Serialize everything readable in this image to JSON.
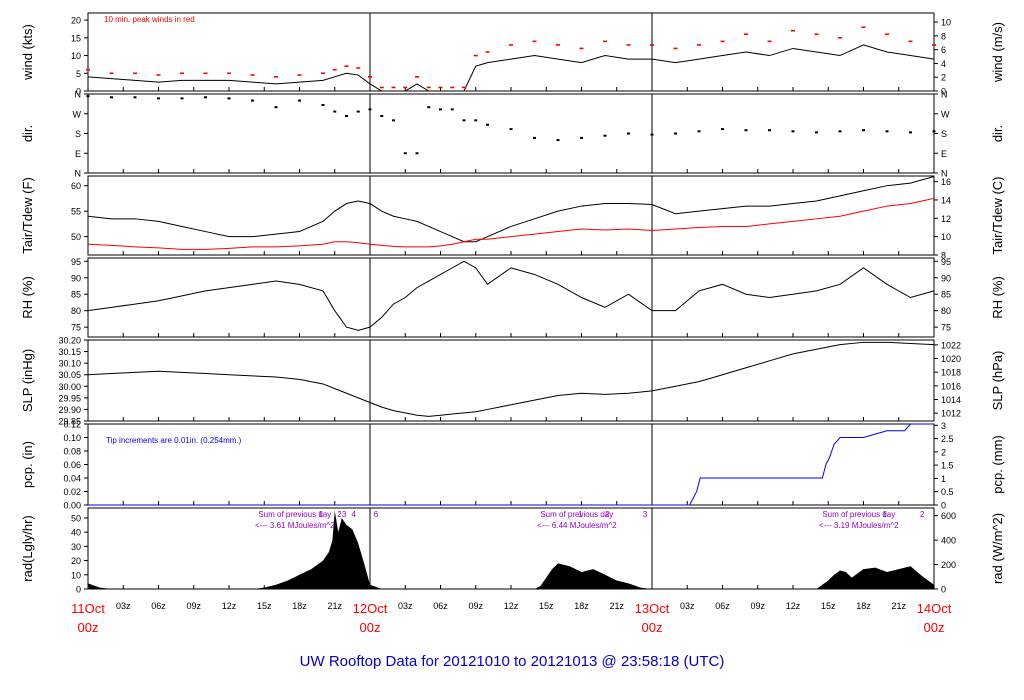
{
  "title": "UW Rooftop Data for 20121010  to  20121013 @ 23:58:18  (UTC)",
  "colors": {
    "axis": "#000000",
    "red": "#ff0000",
    "blue": "#0000ff",
    "purple": "#9900cc",
    "title": "#0000cc",
    "fill": "#000000"
  },
  "time_axis": {
    "range_hours": [
      0,
      72
    ],
    "tick_labels": [
      "03z",
      "06z",
      "09z",
      "12z",
      "15z",
      "18z",
      "21z",
      "03z",
      "06z",
      "09z",
      "12z",
      "15z",
      "18z",
      "21z",
      "03z",
      "06z",
      "09z",
      "12z",
      "15z",
      "18z",
      "21z"
    ],
    "tick_hours": [
      3,
      6,
      9,
      12,
      15,
      18,
      21,
      27,
      30,
      33,
      36,
      39,
      42,
      45,
      51,
      54,
      57,
      60,
      63,
      66,
      69
    ],
    "day_labels": [
      {
        "hour": 0,
        "line1": "11Oct",
        "line2": "00z"
      },
      {
        "hour": 24,
        "line1": "12Oct",
        "line2": "00z"
      },
      {
        "hour": 48,
        "line1": "13Oct",
        "line2": "00z"
      },
      {
        "hour": 72,
        "line1": "14Oct",
        "line2": "00z"
      }
    ]
  },
  "chart_data": [
    {
      "id": "wind",
      "type": "line",
      "left_label": "wind (kts)",
      "right_label": "wind (m/s)",
      "annotation": "10 min. peak winds in red",
      "ylim": [
        0,
        22
      ],
      "left_ticks": [
        "0",
        "5",
        "10",
        "15",
        "20"
      ],
      "left_tick_values": [
        0,
        5,
        10,
        15,
        20
      ],
      "right_ticks": [
        "0",
        "2",
        "4",
        "6",
        "8",
        "10"
      ],
      "right_tick_values": [
        0,
        3.89,
        7.78,
        11.66,
        15.55,
        19.44
      ],
      "hours": [
        0,
        2,
        4,
        6,
        8,
        10,
        12,
        14,
        16,
        18,
        20,
        21,
        22,
        23,
        24,
        25,
        26,
        27,
        28,
        29,
        30,
        31,
        32,
        33,
        34,
        36,
        38,
        40,
        42,
        44,
        46,
        48,
        50,
        52,
        54,
        56,
        58,
        60,
        62,
        64,
        66,
        68,
        70,
        72
      ],
      "series": [
        {
          "name": "wind",
          "values": [
            4,
            3.5,
            3,
            2.5,
            3,
            3,
            3,
            2.5,
            2,
            2.5,
            3,
            4,
            5,
            4.5,
            2,
            0,
            0,
            0,
            2,
            0,
            0,
            0,
            0,
            7,
            8,
            9,
            10,
            9,
            8,
            10,
            9,
            9,
            8,
            9,
            10,
            11,
            10,
            12,
            11,
            10,
            13,
            11,
            10,
            9
          ]
        },
        {
          "name": "peak",
          "color": "red",
          "values": [
            6,
            5,
            5,
            4.5,
            5,
            5,
            5,
            4.5,
            4,
            4.5,
            5,
            6,
            7,
            6.5,
            4,
            1,
            1,
            1,
            4,
            1,
            1,
            1,
            1,
            10,
            11,
            13,
            14,
            13,
            12,
            14,
            13,
            13,
            12,
            13,
            14,
            16,
            14,
            17,
            16,
            15,
            18,
            16,
            14,
            13
          ]
        }
      ]
    },
    {
      "id": "dir",
      "type": "scatter",
      "left_label": "dir.",
      "right_label": "dir.",
      "ylim": [
        0,
        360
      ],
      "left_ticks": [
        "N",
        "E",
        "S",
        "W",
        "N"
      ],
      "left_tick_values": [
        0,
        90,
        180,
        270,
        360
      ],
      "right_ticks": [
        "N",
        "E",
        "S",
        "W",
        "N"
      ],
      "right_tick_values": [
        0,
        90,
        180,
        270,
        360
      ],
      "hours": [
        0,
        2,
        4,
        6,
        8,
        10,
        12,
        14,
        16,
        18,
        20,
        21,
        22,
        23,
        24,
        25,
        26,
        27,
        28,
        29,
        30,
        31,
        32,
        33,
        34,
        36,
        38,
        40,
        42,
        44,
        46,
        48,
        50,
        52,
        54,
        56,
        58,
        60,
        62,
        64,
        66,
        68,
        70,
        72
      ],
      "series": [
        {
          "name": "direction",
          "values": [
            350,
            345,
            345,
            340,
            340,
            345,
            340,
            330,
            300,
            330,
            310,
            280,
            260,
            280,
            290,
            260,
            240,
            90,
            90,
            300,
            290,
            290,
            240,
            240,
            220,
            200,
            160,
            150,
            160,
            170,
            180,
            175,
            180,
            190,
            200,
            195,
            195,
            190,
            185,
            190,
            195,
            190,
            185,
            190
          ]
        }
      ]
    },
    {
      "id": "temp",
      "type": "line",
      "left_label": "Tair/Tdew (F)",
      "right_label": "Tair/Tdew (C)",
      "ylim": [
        46.4,
        61.9
      ],
      "left_ticks": [
        "50",
        "55",
        "60"
      ],
      "left_tick_values": [
        50,
        55,
        60
      ],
      "right_ticks": [
        "8",
        "10",
        "12",
        "14",
        "16"
      ],
      "right_tick_values": [
        46.4,
        50,
        53.6,
        57.2,
        60.8
      ],
      "hours": [
        0,
        2,
        4,
        6,
        8,
        10,
        12,
        14,
        16,
        18,
        20,
        21,
        22,
        23,
        24,
        25,
        26,
        27,
        28,
        29,
        30,
        31,
        32,
        33,
        34,
        36,
        38,
        40,
        42,
        44,
        46,
        48,
        50,
        52,
        54,
        56,
        58,
        60,
        62,
        64,
        66,
        68,
        70,
        72
      ],
      "series": [
        {
          "name": "Tair",
          "values": [
            54,
            53.5,
            53.5,
            53,
            52,
            51,
            50,
            50,
            50.5,
            51,
            53,
            55,
            56.5,
            57,
            56.5,
            55,
            54,
            53.5,
            53,
            52,
            51,
            50,
            49,
            49,
            50,
            52,
            53.5,
            55,
            56,
            56.5,
            56.5,
            56.3,
            54.5,
            55,
            55.5,
            56,
            56,
            56.5,
            57,
            58,
            59,
            60,
            60.5,
            61.8
          ]
        },
        {
          "name": "Tdew",
          "color": "red",
          "values": [
            48.5,
            48.3,
            48,
            47.8,
            47.5,
            47.5,
            47.7,
            48,
            48,
            48.2,
            48.5,
            49,
            49,
            48.8,
            48.5,
            48.3,
            48.1,
            48,
            48,
            48,
            48.2,
            48.5,
            49,
            49.5,
            49.5,
            50,
            50.5,
            51,
            51.5,
            51.3,
            51.5,
            51.2,
            51.5,
            51.8,
            52,
            52,
            52.5,
            53,
            53.5,
            54,
            55,
            56,
            56.5,
            57.5
          ]
        }
      ]
    },
    {
      "id": "rh",
      "type": "line",
      "left_label": "RH (%)",
      "right_label": "RH (%)",
      "ylim": [
        72,
        96
      ],
      "left_ticks": [
        "75",
        "80",
        "85",
        "90",
        "95"
      ],
      "left_tick_values": [
        75,
        80,
        85,
        90,
        95
      ],
      "right_ticks": [
        "75",
        "80",
        "85",
        "90",
        "95"
      ],
      "right_tick_values": [
        75,
        80,
        85,
        90,
        95
      ],
      "hours": [
        0,
        2,
        4,
        6,
        8,
        10,
        12,
        14,
        16,
        18,
        20,
        21,
        22,
        23,
        24,
        25,
        26,
        27,
        28,
        29,
        30,
        31,
        32,
        33,
        34,
        36,
        38,
        40,
        42,
        44,
        46,
        48,
        50,
        52,
        54,
        56,
        58,
        60,
        62,
        64,
        66,
        68,
        70,
        72
      ],
      "series": [
        {
          "name": "RH",
          "values": [
            80,
            81,
            82,
            83,
            84.5,
            86,
            87,
            88,
            89,
            88,
            86,
            80,
            75,
            74,
            75,
            78,
            82,
            84,
            87,
            89,
            91,
            93,
            95,
            93,
            88,
            93,
            91,
            88,
            84,
            81,
            85,
            80,
            80,
            86,
            88,
            85,
            84,
            85,
            86,
            88,
            93,
            88,
            84,
            86
          ]
        }
      ]
    },
    {
      "id": "slp",
      "type": "line",
      "left_label": "SLP (inHg)",
      "right_label": "SLP (hPa)",
      "ylim": [
        29.85,
        30.2
      ],
      "left_ticks": [
        "29.85",
        "29.90",
        "29.95",
        "30.00",
        "30.05",
        "30.10",
        "30.15",
        "30.20"
      ],
      "left_tick_values": [
        29.85,
        29.9,
        29.95,
        30,
        30.05,
        30.1,
        30.15,
        30.2
      ],
      "right_ticks": [
        "1012",
        "1014",
        "1016",
        "1018",
        "1020",
        "1022"
      ],
      "right_tick_values": [
        29.884,
        29.943,
        30.002,
        30.061,
        30.12,
        30.179
      ],
      "hours": [
        0,
        2,
        4,
        6,
        8,
        10,
        12,
        14,
        16,
        18,
        20,
        21,
        22,
        23,
        24,
        25,
        26,
        27,
        28,
        29,
        30,
        31,
        32,
        33,
        34,
        36,
        38,
        40,
        42,
        44,
        46,
        48,
        50,
        52,
        54,
        56,
        58,
        60,
        62,
        64,
        66,
        68,
        70,
        72
      ],
      "series": [
        {
          "name": "SLP",
          "values": [
            30.05,
            30.055,
            30.06,
            30.065,
            30.06,
            30.055,
            30.05,
            30.045,
            30.04,
            30.03,
            30.01,
            29.99,
            29.97,
            29.95,
            29.93,
            29.91,
            29.895,
            29.885,
            29.875,
            29.87,
            29.875,
            29.88,
            29.885,
            29.89,
            29.9,
            29.92,
            29.94,
            29.96,
            29.97,
            29.965,
            29.97,
            29.98,
            30.0,
            30.02,
            30.05,
            30.08,
            30.11,
            30.14,
            30.16,
            30.18,
            30.19,
            30.19,
            30.185,
            30.18
          ]
        }
      ]
    },
    {
      "id": "pcp",
      "type": "line",
      "left_label": "pcp. (in)",
      "right_label": "pcp. (mm)",
      "annotation": "Tip increments are 0.01in. (0.254mm.)",
      "ylim": [
        0,
        0.12
      ],
      "left_ticks": [
        "0.00",
        "0.02",
        "0.04",
        "0.06",
        "0.08",
        "0.10",
        "0.12"
      ],
      "left_tick_values": [
        0,
        0.02,
        0.04,
        0.06,
        0.08,
        0.1,
        0.12
      ],
      "right_ticks": [
        "0",
        "0.5",
        "1",
        "1.5",
        "2",
        "2.5",
        "3"
      ],
      "right_tick_values": [
        0,
        0.0197,
        0.0394,
        0.0591,
        0.0787,
        0.0984,
        0.1181
      ],
      "hours": [
        0,
        51.2,
        51.5,
        51.8,
        52.1,
        54,
        58,
        60,
        62.5,
        62.8,
        63.1,
        63.5,
        64,
        66,
        68,
        69.5,
        70,
        72
      ],
      "series": [
        {
          "name": "precip",
          "color": "blue",
          "values": [
            0,
            0,
            0.01,
            0.02,
            0.04,
            0.04,
            0.04,
            0.04,
            0.04,
            0.06,
            0.07,
            0.09,
            0.1,
            0.1,
            0.11,
            0.11,
            0.12,
            0.12
          ]
        }
      ]
    },
    {
      "id": "rad",
      "type": "area",
      "left_label": "rad(Lgly/hr)",
      "right_label": "rad (W/m^2)",
      "ylim": [
        0,
        57
      ],
      "left_ticks": [
        "0",
        "10",
        "20",
        "30",
        "40",
        "50"
      ],
      "left_tick_values": [
        0,
        10,
        20,
        30,
        40,
        50
      ],
      "right_ticks": [
        "0",
        "200",
        "400",
        "600"
      ],
      "right_tick_values": [
        0,
        17.2,
        34.4,
        51.6
      ],
      "hours": [
        0,
        1,
        2,
        14,
        15,
        16,
        17,
        18,
        19,
        20,
        20.5,
        20.8,
        21,
        21.3,
        21.6,
        22,
        22.5,
        23,
        23.5,
        24,
        25,
        38,
        38.5,
        39,
        39.5,
        40,
        41,
        42,
        43,
        44,
        45,
        46,
        47,
        48,
        62,
        62.5,
        63,
        63.5,
        64,
        64.5,
        65,
        66,
        67,
        68,
        69,
        70,
        71,
        72
      ],
      "series": [
        {
          "name": "radiation",
          "values": [
            4,
            1,
            0,
            0,
            1,
            3,
            6,
            10,
            14,
            20,
            26,
            34,
            55,
            40,
            50,
            45,
            42,
            32,
            18,
            3,
            0,
            0,
            2,
            8,
            14,
            18,
            16,
            12,
            14,
            10,
            6,
            4,
            1,
            0,
            0,
            3,
            6,
            10,
            13,
            12,
            8,
            14,
            15,
            12,
            14,
            16,
            9,
            3
          ]
        }
      ],
      "annotations": [
        {
          "hour": 17.6,
          "text": "Sum of previous day",
          "row": 1
        },
        {
          "hour": 17.6,
          "text": "<--- 3.61 MJoules/m^2",
          "row": 2
        },
        {
          "hour": 41.6,
          "text": "Sum of previous day",
          "row": 1
        },
        {
          "hour": 41.6,
          "text": "<--- 6.44 MJoules/m^2",
          "row": 2
        },
        {
          "hour": 65.6,
          "text": "Sum of previous day",
          "row": 1
        },
        {
          "hour": 65.6,
          "text": "<--- 3.19 MJoules/m^2",
          "row": 2
        }
      ],
      "markers": [
        {
          "hour": 19.8,
          "text": "1"
        },
        {
          "hour": 21.4,
          "text": "2"
        },
        {
          "hour": 21.8,
          "text": "3"
        },
        {
          "hour": 22.6,
          "text": "4"
        },
        {
          "hour": 24.5,
          "text": "6"
        },
        {
          "hour": 41.9,
          "text": "1"
        },
        {
          "hour": 44.2,
          "text": "2"
        },
        {
          "hour": 47.4,
          "text": "3"
        },
        {
          "hour": 67.8,
          "text": "1"
        },
        {
          "hour": 71.0,
          "text": "2"
        }
      ]
    }
  ]
}
